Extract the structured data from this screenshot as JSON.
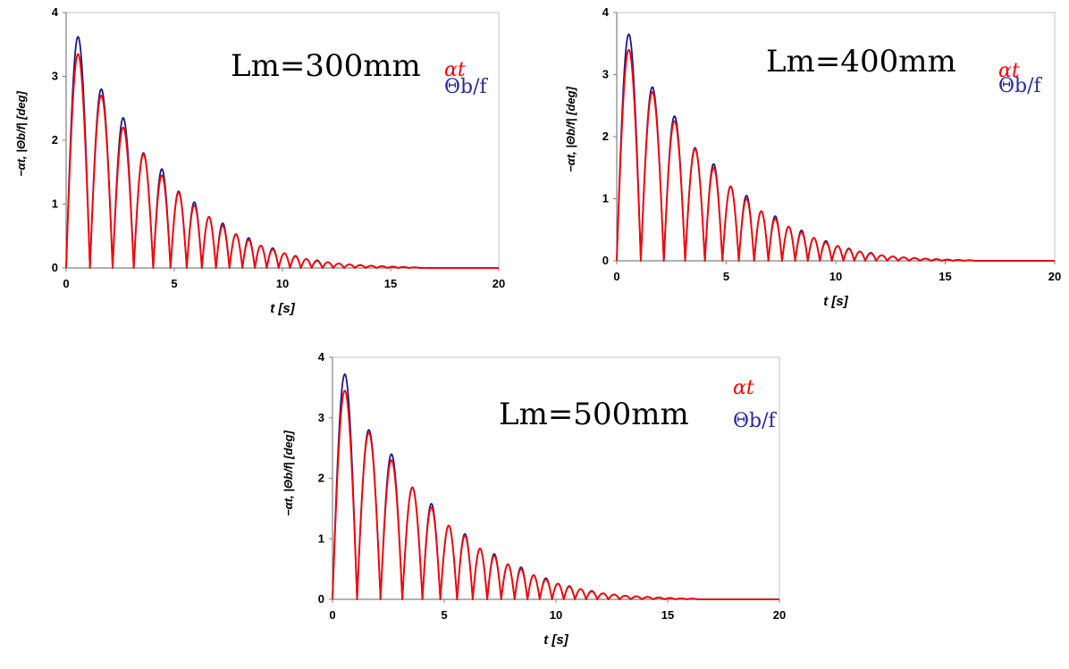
{
  "figure": {
    "background": "#ffffff"
  },
  "chart_data": [
    {
      "type": "line",
      "title": "Lm=300mm",
      "xlabel": "t [s]",
      "ylabel": "−αt, |Θb/f| [deg]",
      "xlim": [
        0,
        20
      ],
      "ylim": [
        0,
        4
      ],
      "xticks": [
        "0",
        "5",
        "10",
        "15",
        "20"
      ],
      "yticks": [
        "0",
        "1",
        "2",
        "3",
        "4"
      ],
      "grid": false,
      "legend_position": "top-right",
      "series": [
        {
          "name": "αt",
          "color": "#ff0000",
          "peak_t": [
            0.55,
            1.65,
            2.65,
            3.6,
            4.45,
            5.2,
            5.95,
            6.6,
            7.25,
            7.85,
            8.45,
            9.0,
            9.55,
            10.1,
            10.6,
            11.1,
            11.6,
            12.1,
            12.6,
            13.1,
            13.6,
            14.1,
            14.6,
            15.1,
            15.6,
            16.1
          ],
          "peak_y": [
            3.35,
            2.7,
            2.2,
            1.78,
            1.45,
            1.18,
            0.98,
            0.8,
            0.66,
            0.53,
            0.44,
            0.35,
            0.29,
            0.23,
            0.18,
            0.14,
            0.11,
            0.09,
            0.07,
            0.055,
            0.045,
            0.035,
            0.027,
            0.02,
            0.015,
            0.01
          ]
        },
        {
          "name": "Θb/f",
          "color": "#1a1a8c",
          "peak_t": [
            0.55,
            1.65,
            2.65,
            3.6,
            4.45,
            5.2,
            5.95,
            6.6,
            7.25,
            7.85,
            8.45,
            9.0,
            9.55,
            10.1,
            10.6,
            11.1,
            11.6,
            12.1,
            12.6,
            13.1,
            13.6,
            14.1,
            14.6,
            15.1,
            15.6,
            16.1
          ],
          "peak_y": [
            3.62,
            2.8,
            2.35,
            1.8,
            1.55,
            1.2,
            1.03,
            0.8,
            0.7,
            0.53,
            0.47,
            0.35,
            0.31,
            0.23,
            0.19,
            0.14,
            0.12,
            0.09,
            0.07,
            0.055,
            0.045,
            0.035,
            0.027,
            0.02,
            0.015,
            0.01
          ]
        }
      ]
    },
    {
      "type": "line",
      "title": "Lm=400mm",
      "xlabel": "t [s]",
      "ylabel": "−αt, |Θb/f| [deg]",
      "xlim": [
        0,
        20
      ],
      "ylim": [
        0,
        4
      ],
      "xticks": [
        "0",
        "5",
        "10",
        "15",
        "20"
      ],
      "yticks": [
        "0",
        "1",
        "2",
        "3",
        "4"
      ],
      "grid": false,
      "legend_position": "top-right",
      "series": [
        {
          "name": "αt",
          "color": "#ff0000",
          "peak_t": [
            0.55,
            1.65,
            2.65,
            3.6,
            4.45,
            5.2,
            5.95,
            6.6,
            7.25,
            7.85,
            8.45,
            9.0,
            9.55,
            10.1,
            10.6,
            11.1,
            11.6,
            12.1,
            12.6,
            13.1,
            13.6,
            14.1,
            14.6,
            15.1,
            15.6,
            16.1
          ],
          "peak_y": [
            3.4,
            2.72,
            2.25,
            1.8,
            1.5,
            1.2,
            1.0,
            0.8,
            0.68,
            0.55,
            0.46,
            0.37,
            0.3,
            0.24,
            0.19,
            0.15,
            0.12,
            0.09,
            0.07,
            0.055,
            0.045,
            0.035,
            0.027,
            0.02,
            0.015,
            0.01
          ]
        },
        {
          "name": "Θb/f",
          "color": "#1a1a8c",
          "peak_t": [
            0.55,
            1.65,
            2.65,
            3.6,
            4.45,
            5.2,
            5.95,
            6.6,
            7.25,
            7.85,
            8.45,
            9.0,
            9.55,
            10.1,
            10.6,
            11.1,
            11.6,
            12.1,
            12.6,
            13.1,
            13.6,
            14.1,
            14.6,
            15.1,
            15.6,
            16.1
          ],
          "peak_y": [
            3.65,
            2.8,
            2.33,
            1.82,
            1.56,
            1.2,
            1.05,
            0.8,
            0.72,
            0.55,
            0.49,
            0.37,
            0.32,
            0.24,
            0.2,
            0.15,
            0.13,
            0.09,
            0.07,
            0.055,
            0.045,
            0.035,
            0.027,
            0.02,
            0.015,
            0.01
          ]
        }
      ]
    },
    {
      "type": "line",
      "title": "Lm=500mm",
      "xlabel": "t [s]",
      "ylabel": "−αt, |Θb/f| [deg]",
      "xlim": [
        0,
        20
      ],
      "ylim": [
        0,
        4
      ],
      "xticks": [
        "0",
        "5",
        "10",
        "15",
        "20"
      ],
      "yticks": [
        "0",
        "1",
        "2",
        "3",
        "4"
      ],
      "grid": false,
      "legend_position": "top-right",
      "series": [
        {
          "name": "αt",
          "color": "#ff0000",
          "peak_t": [
            0.55,
            1.65,
            2.65,
            3.6,
            4.45,
            5.2,
            5.95,
            6.6,
            7.25,
            7.85,
            8.45,
            9.0,
            9.55,
            10.1,
            10.6,
            11.1,
            11.6,
            12.1,
            12.6,
            13.1,
            13.6,
            14.1,
            14.6,
            15.1,
            15.6,
            16.1
          ],
          "peak_y": [
            3.45,
            2.75,
            2.3,
            1.85,
            1.52,
            1.22,
            1.05,
            0.84,
            0.72,
            0.58,
            0.5,
            0.4,
            0.33,
            0.26,
            0.21,
            0.17,
            0.13,
            0.1,
            0.08,
            0.06,
            0.05,
            0.04,
            0.03,
            0.022,
            0.016,
            0.012
          ]
        },
        {
          "name": "Θb/f",
          "color": "#1a1a8c",
          "peak_t": [
            0.55,
            1.65,
            2.65,
            3.6,
            4.45,
            5.2,
            5.95,
            6.6,
            7.25,
            7.85,
            8.45,
            9.0,
            9.55,
            10.1,
            10.6,
            11.1,
            11.6,
            12.1,
            12.6,
            13.1,
            13.6,
            14.1,
            14.6,
            15.1,
            15.6,
            16.1
          ],
          "peak_y": [
            3.72,
            2.8,
            2.4,
            1.85,
            1.58,
            1.22,
            1.08,
            0.84,
            0.75,
            0.58,
            0.53,
            0.4,
            0.35,
            0.26,
            0.22,
            0.17,
            0.14,
            0.1,
            0.08,
            0.06,
            0.05,
            0.04,
            0.03,
            0.022,
            0.016,
            0.012
          ]
        }
      ]
    }
  ]
}
